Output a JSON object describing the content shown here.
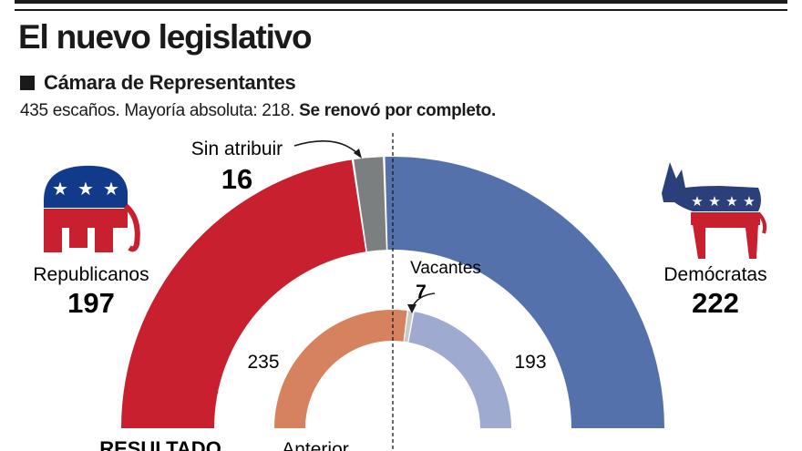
{
  "title": "El nuevo legislativo",
  "subtitle": "Cámara de Representantes",
  "description": {
    "plain": "435 escaños. Mayoría absoluta: 218.",
    "bold": " Se renovó por completo."
  },
  "colors": {
    "republican": "#c8202f",
    "democrat": "#5471ab",
    "unassigned": "#7b7f80",
    "previous_republican": "#d6825f",
    "previous_democrat": "#9eaad0",
    "vacant": "#c9c9c9",
    "ink": "#1a1a1a"
  },
  "icons": {
    "republican": "elephant-icon",
    "democrat": "donkey-icon"
  },
  "chart_data": [
    {
      "type": "pie",
      "style": "half-donut",
      "name": "RESULTADO",
      "total": 435,
      "slices": [
        {
          "label": "Republicanos",
          "value": 197,
          "color": "#c8202f"
        },
        {
          "label": "Sin atribuir",
          "value": 16,
          "color": "#7b7f80"
        },
        {
          "label": "Demócratas",
          "value": 222,
          "color": "#5471ab"
        }
      ]
    },
    {
      "type": "pie",
      "style": "half-donut",
      "name": "Anterior",
      "total": 435,
      "slices": [
        {
          "label": "",
          "value": 235,
          "color": "#d6825f"
        },
        {
          "label": "Vacantes",
          "value": 7,
          "color": "#c9c9c9"
        },
        {
          "label": "",
          "value": 193,
          "color": "#9eaad0"
        }
      ]
    }
  ]
}
